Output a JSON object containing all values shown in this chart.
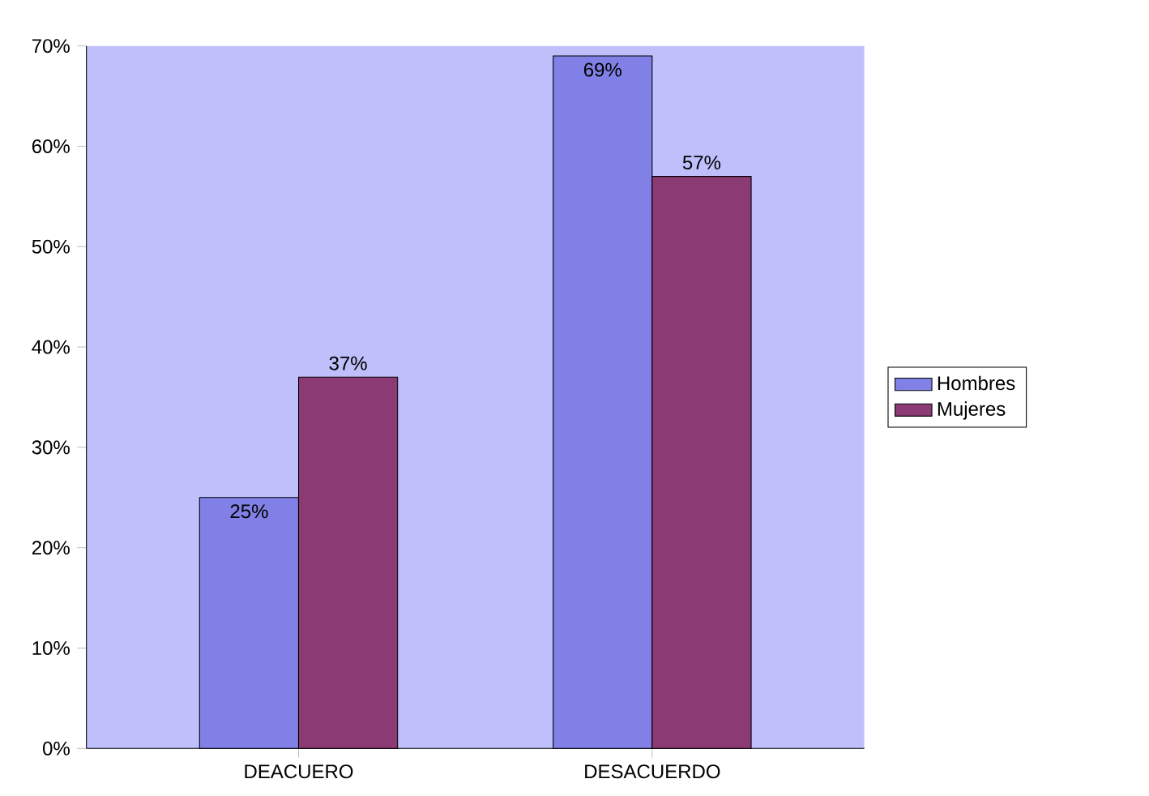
{
  "chart_data": {
    "type": "bar",
    "categories": [
      "DEACUERO",
      "DESACUERDO"
    ],
    "series": [
      {
        "name": "Hombres",
        "color": "#8080e6",
        "values": [
          25,
          69
        ],
        "value_labels": [
          "25%",
          "69%"
        ]
      },
      {
        "name": "Mujeres",
        "color": "#8c3a73",
        "values": [
          37,
          57
        ],
        "value_labels": [
          "37%",
          "57%"
        ]
      }
    ],
    "ylim": [
      0,
      70
    ],
    "yticks": [
      {
        "value": 0,
        "label": "0%"
      },
      {
        "value": 10,
        "label": "10%"
      },
      {
        "value": 20,
        "label": "20%"
      },
      {
        "value": 30,
        "label": "30%"
      },
      {
        "value": 40,
        "label": "40%"
      },
      {
        "value": 50,
        "label": "50%"
      },
      {
        "value": 60,
        "label": "60%"
      },
      {
        "value": 70,
        "label": "70%"
      }
    ],
    "legend": "right"
  }
}
